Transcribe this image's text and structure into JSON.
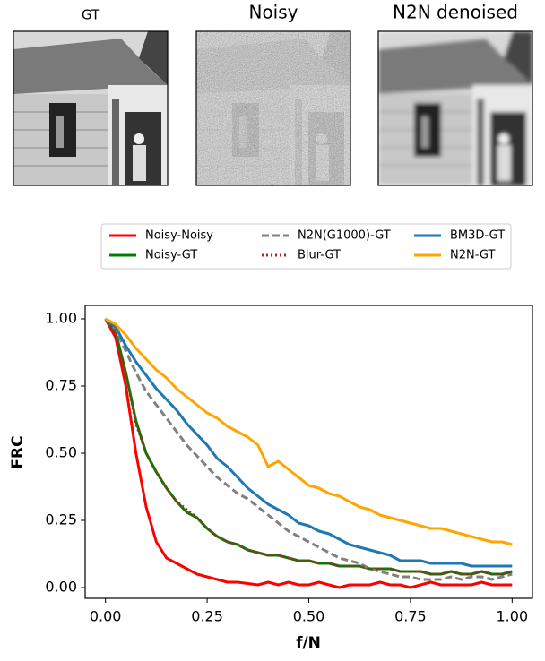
{
  "panels": [
    {
      "title": "GT"
    },
    {
      "title": "Noisy"
    },
    {
      "title": "N2N denoised"
    }
  ],
  "chart_data": {
    "type": "line",
    "xlabel": "f/N",
    "ylabel": "FRC",
    "xlim": [
      -0.05,
      1.05
    ],
    "ylim": [
      -0.04,
      1.05
    ],
    "xticks": [
      {
        "value": 0,
        "label": "0.00"
      },
      {
        "value": 0.25,
        "label": "0.25"
      },
      {
        "value": 0.5,
        "label": "0.50"
      },
      {
        "value": 0.75,
        "label": "0.75"
      },
      {
        "value": 1,
        "label": "1.00"
      }
    ],
    "yticks": [
      {
        "value": 0,
        "label": "0.00"
      },
      {
        "value": 0.25,
        "label": "0.25"
      },
      {
        "value": 0.5,
        "label": "0.50"
      },
      {
        "value": 0.75,
        "label": "0.75"
      },
      {
        "value": 1,
        "label": "1.00"
      }
    ],
    "legend": "upper center outside",
    "x": [
      0,
      0.025,
      0.05,
      0.075,
      0.1,
      0.125,
      0.15,
      0.175,
      0.2,
      0.225,
      0.25,
      0.275,
      0.3,
      0.325,
      0.35,
      0.375,
      0.4,
      0.425,
      0.45,
      0.475,
      0.5,
      0.525,
      0.55,
      0.575,
      0.6,
      0.625,
      0.65,
      0.675,
      0.7,
      0.725,
      0.75,
      0.775,
      0.8,
      0.825,
      0.85,
      0.875,
      0.9,
      0.925,
      0.95,
      0.975,
      1
    ],
    "series": [
      {
        "name": "Noisy-Noisy",
        "color": "#ff0000",
        "dash": "solid",
        "values": [
          1.0,
          0.93,
          0.75,
          0.5,
          0.3,
          0.17,
          0.11,
          0.09,
          0.07,
          0.05,
          0.04,
          0.03,
          0.02,
          0.02,
          0.015,
          0.01,
          0.02,
          0.01,
          0.02,
          0.01,
          0.01,
          0.02,
          0.01,
          0.0,
          0.01,
          0.01,
          0.01,
          0.02,
          0.01,
          0.01,
          0.0,
          0.01,
          0.02,
          0.01,
          0.01,
          0.01,
          0.01,
          0.02,
          0.01,
          0.01,
          0.01
        ]
      },
      {
        "name": "Noisy-GT",
        "color": "#008000",
        "dash": "solid",
        "values": [
          1.0,
          0.95,
          0.8,
          0.62,
          0.5,
          0.43,
          0.37,
          0.32,
          0.28,
          0.26,
          0.22,
          0.19,
          0.17,
          0.16,
          0.14,
          0.13,
          0.12,
          0.12,
          0.11,
          0.1,
          0.1,
          0.09,
          0.09,
          0.08,
          0.08,
          0.08,
          0.07,
          0.07,
          0.07,
          0.06,
          0.06,
          0.06,
          0.05,
          0.05,
          0.06,
          0.05,
          0.05,
          0.06,
          0.05,
          0.05,
          0.06
        ]
      },
      {
        "name": "N2N(G1000)-GT",
        "color": "#808080",
        "dash": "dashed",
        "values": [
          1.0,
          0.96,
          0.88,
          0.8,
          0.73,
          0.68,
          0.63,
          0.58,
          0.53,
          0.49,
          0.45,
          0.41,
          0.38,
          0.35,
          0.33,
          0.3,
          0.27,
          0.24,
          0.21,
          0.19,
          0.17,
          0.15,
          0.13,
          0.11,
          0.1,
          0.09,
          0.07,
          0.06,
          0.05,
          0.04,
          0.04,
          0.03,
          0.03,
          0.03,
          0.04,
          0.03,
          0.04,
          0.04,
          0.03,
          0.04,
          0.05
        ]
      },
      {
        "name": "Blur-GT",
        "color": "#a52a2a",
        "dash": "dotted",
        "values": [
          1.0,
          0.95,
          0.8,
          0.61,
          0.5,
          0.43,
          0.37,
          0.32,
          0.29,
          0.26,
          0.22,
          0.19,
          0.17,
          0.16,
          0.14,
          0.13,
          0.12,
          0.12,
          0.11,
          0.1,
          0.1,
          0.09,
          0.09,
          0.08,
          0.08,
          0.08,
          0.07,
          0.07,
          0.07,
          0.06,
          0.06,
          0.06,
          0.05,
          0.05,
          0.06,
          0.05,
          0.05,
          0.06,
          0.05,
          0.05,
          0.06
        ]
      },
      {
        "name": "BM3D-GT",
        "color": "#1f77b4",
        "dash": "solid",
        "values": [
          1.0,
          0.97,
          0.9,
          0.84,
          0.79,
          0.74,
          0.7,
          0.66,
          0.61,
          0.57,
          0.53,
          0.48,
          0.45,
          0.41,
          0.37,
          0.34,
          0.31,
          0.29,
          0.27,
          0.24,
          0.23,
          0.21,
          0.2,
          0.18,
          0.16,
          0.15,
          0.14,
          0.13,
          0.12,
          0.1,
          0.1,
          0.1,
          0.09,
          0.09,
          0.09,
          0.09,
          0.08,
          0.08,
          0.08,
          0.08,
          0.08
        ]
      },
      {
        "name": "N2N-GT",
        "color": "#ffa500",
        "dash": "solid",
        "values": [
          1.0,
          0.98,
          0.94,
          0.89,
          0.85,
          0.81,
          0.78,
          0.74,
          0.71,
          0.68,
          0.65,
          0.63,
          0.6,
          0.58,
          0.56,
          0.53,
          0.45,
          0.47,
          0.44,
          0.41,
          0.38,
          0.37,
          0.35,
          0.34,
          0.32,
          0.3,
          0.29,
          0.27,
          0.26,
          0.25,
          0.24,
          0.23,
          0.22,
          0.22,
          0.21,
          0.2,
          0.19,
          0.18,
          0.17,
          0.17,
          0.16
        ]
      }
    ]
  }
}
